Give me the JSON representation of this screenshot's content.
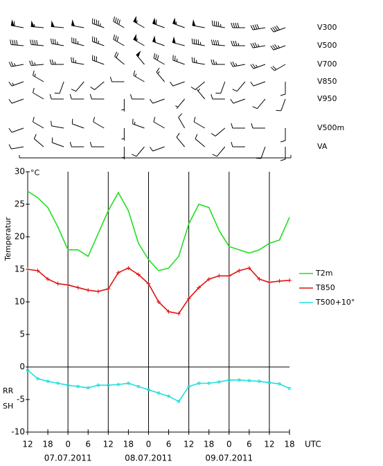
{
  "chart_data": {
    "type": "line",
    "ylabel": "Temperatur",
    "yunit": "°C",
    "x_unit_label": "UTC",
    "dates": [
      "07.07.2011",
      "08.07.2011",
      "09.07.2011"
    ],
    "side_labels": [
      {
        "text": "RR",
        "color": "#33cc33"
      },
      {
        "text": "SH",
        "color": "#0000cc"
      }
    ],
    "xlim": [
      0,
      78
    ],
    "xticks": [
      {
        "value": 0,
        "label": "12"
      },
      {
        "value": 6,
        "label": "18"
      },
      {
        "value": 12,
        "label": "0"
      },
      {
        "value": 18,
        "label": "6"
      },
      {
        "value": 24,
        "label": "12"
      },
      {
        "value": 30,
        "label": "18"
      },
      {
        "value": 36,
        "label": "0"
      },
      {
        "value": 42,
        "label": "6"
      },
      {
        "value": 48,
        "label": "12"
      },
      {
        "value": 54,
        "label": "18"
      },
      {
        "value": 60,
        "label": "0"
      },
      {
        "value": 66,
        "label": "6"
      },
      {
        "value": 72,
        "label": "12"
      },
      {
        "value": 78,
        "label": "18"
      }
    ],
    "vlines": [
      12,
      24,
      36,
      48,
      60,
      72
    ],
    "ylim": [
      -10,
      30
    ],
    "yticks": [
      -10,
      -5,
      0,
      5,
      10,
      15,
      20,
      25,
      30
    ],
    "x": [
      0,
      3,
      6,
      9,
      12,
      15,
      18,
      21,
      24,
      27,
      30,
      33,
      36,
      39,
      42,
      45,
      48,
      51,
      54,
      57,
      60,
      63,
      66,
      69,
      72,
      75,
      78
    ],
    "series": [
      {
        "name": "T2m",
        "color": "#22dd22",
        "marker": "none",
        "values": [
          27,
          26,
          24.5,
          21.5,
          18,
          18,
          17,
          20.5,
          24,
          26.8,
          24,
          19,
          16.5,
          14.8,
          15.2,
          17,
          22,
          25,
          24.5,
          21,
          18.5,
          18,
          17.5,
          18,
          19,
          19.5,
          23
        ]
      },
      {
        "name": "T850",
        "color": "#dd1111",
        "marker": "plus",
        "values": [
          15,
          14.8,
          13.5,
          12.8,
          12.6,
          12.2,
          11.8,
          11.6,
          12,
          14.5,
          15.2,
          14.2,
          12.8,
          10,
          8.5,
          8.2,
          10.5,
          12.2,
          13.5,
          14,
          14,
          14.8,
          15.2,
          13.5,
          13,
          13.2,
          13.3
        ]
      },
      {
        "name": "T500+10°",
        "color": "#22dddd",
        "marker": "circle",
        "values": [
          -0.5,
          -1.8,
          -2.2,
          -2.5,
          -2.8,
          -3,
          -3.2,
          -2.8,
          -2.8,
          -2.7,
          -2.5,
          -3,
          -3.5,
          -4,
          -4.5,
          -5.3,
          -3,
          -2.5,
          -2.5,
          -2.3,
          -2,
          -2,
          -2.1,
          -2.2,
          -2.4,
          -2.6,
          -3.3
        ]
      }
    ],
    "wind": {
      "hours": [
        0,
        6,
        12,
        18,
        24,
        30,
        36,
        42,
        48,
        54,
        60,
        66,
        72,
        78
      ],
      "rows": [
        {
          "label": "V300",
          "dir": [
            280,
            275,
            275,
            280,
            290,
            300,
            300,
            290,
            290,
            280,
            280,
            270,
            260,
            250
          ],
          "speed": [
            60,
            55,
            50,
            50,
            45,
            40,
            55,
            60,
            55,
            50,
            45,
            40,
            40,
            40
          ]
        },
        {
          "label": "V500",
          "dir": [
            275,
            275,
            280,
            285,
            290,
            300,
            300,
            290,
            285,
            280,
            275,
            270,
            260,
            250
          ],
          "speed": [
            40,
            40,
            35,
            35,
            35,
            30,
            55,
            50,
            50,
            45,
            40,
            35,
            35,
            35
          ]
        },
        {
          "label": "V700",
          "dir": [
            260,
            265,
            270,
            280,
            290,
            310,
            320,
            300,
            290,
            280,
            270,
            260,
            250,
            240
          ],
          "speed": [
            25,
            25,
            25,
            25,
            30,
            20,
            50,
            30,
            25,
            25,
            25,
            25,
            25,
            20
          ]
        },
        {
          "label": "V850",
          "dir": [
            250,
            300,
            200,
            220,
            230,
            270,
            300,
            320,
            250,
            230,
            200,
            220,
            250,
            180
          ],
          "speed": [
            15,
            15,
            10,
            10,
            10,
            10,
            15,
            15,
            10,
            10,
            10,
            10,
            10,
            10
          ]
        },
        {
          "label": "V950",
          "dir": [
            250,
            300,
            270,
            270,
            270,
            180,
            270,
            250,
            220,
            320,
            270,
            250,
            220,
            200
          ],
          "speed": [
            10,
            10,
            10,
            10,
            10,
            5,
            10,
            10,
            5,
            5,
            10,
            10,
            10,
            10
          ]
        },
        {
          "label": "V500m",
          "dir": [
            250,
            300,
            280,
            290,
            300,
            180,
            290,
            300,
            330,
            300,
            230,
            270,
            270,
            180
          ],
          "speed": [
            10,
            10,
            10,
            10,
            10,
            5,
            15,
            10,
            10,
            10,
            10,
            10,
            10,
            10
          ]
        },
        {
          "label": "VA",
          "dir": [
            260,
            310,
            290,
            270,
            270,
            180,
            220,
            250,
            320,
            310,
            220,
            270,
            200,
            180
          ],
          "speed": [
            10,
            10,
            10,
            10,
            10,
            5,
            10,
            10,
            10,
            10,
            10,
            10,
            10,
            10
          ]
        }
      ]
    }
  }
}
